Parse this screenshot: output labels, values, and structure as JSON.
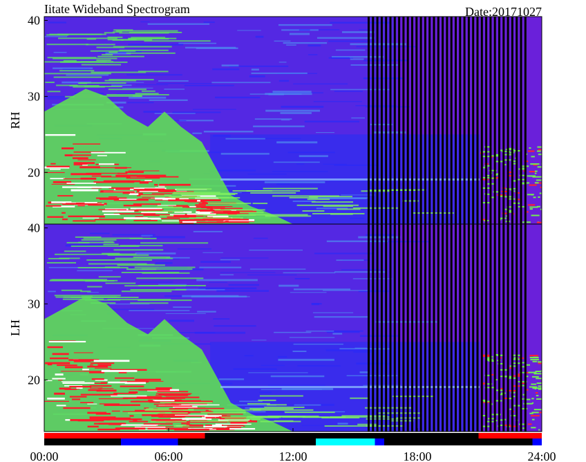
{
  "header": {
    "title": "Iitate Wideband Spectrogram",
    "date": "Date:20171027"
  },
  "chart_data": [
    {
      "type": "spectrogram",
      "label": "RH",
      "xlim": [
        0,
        24
      ],
      "ylim": [
        13.2,
        40.5
      ],
      "yticks": [
        20,
        30,
        40
      ]
    },
    {
      "type": "spectrogram",
      "label": "LH",
      "xlim": [
        0,
        24
      ],
      "ylim": [
        13.2,
        40.5
      ],
      "yticks": [
        20,
        30,
        40
      ],
      "xticks": [
        {
          "value": 0,
          "label": "00:00"
        },
        {
          "value": 6,
          "label": "06:00"
        },
        {
          "value": 12,
          "label": "12:00"
        },
        {
          "value": 18,
          "label": "18:00"
        },
        {
          "value": 24,
          "label": "24:00"
        }
      ]
    }
  ],
  "status_bar": {
    "background": "#000000",
    "segments": [
      {
        "row": "upper",
        "color": "#ff0000",
        "start": 0,
        "end": 7.75
      },
      {
        "row": "lower",
        "color": "#0000ff",
        "start": 3.7,
        "end": 6.45
      },
      {
        "row": "lower",
        "color": "#00ffff",
        "start": 13.1,
        "end": 15.95
      },
      {
        "row": "lower",
        "color": "#0000ff",
        "start": 15.95,
        "end": 16.4
      },
      {
        "row": "upper",
        "color": "#ff0000",
        "start": 20.95,
        "end": 24
      },
      {
        "row": "lower",
        "color": "#0000ff",
        "start": 23.55,
        "end": 24
      }
    ]
  }
}
